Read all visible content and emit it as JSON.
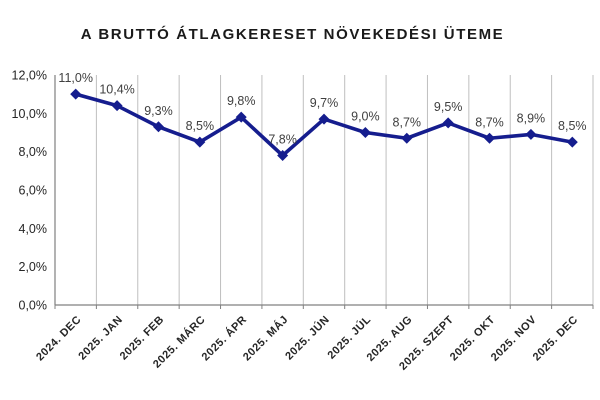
{
  "chart_data": {
    "type": "line",
    "title": "A BRUTTÓ ÁTLAGKERESET NÖVEKEDÉSI ÜTEME",
    "categories": [
      "2024. DEC",
      "2025. JAN",
      "2025. FEB",
      "2025. MÁRC",
      "2025. ÁPR",
      "2025. MÁJ",
      "2025. JÚN",
      "2025. JÚL",
      "2025. AUG",
      "2025. SZEPT",
      "2025. OKT",
      "2025. NOV",
      "2025. DEC"
    ],
    "values": [
      11.0,
      10.4,
      9.3,
      8.5,
      9.8,
      7.8,
      9.7,
      9.0,
      8.7,
      9.5,
      8.7,
      8.9,
      8.5
    ],
    "value_labels": [
      "11,0%",
      "10,4%",
      "9,3%",
      "8,5%",
      "9,8%",
      "7,8%",
      "9,7%",
      "9,0%",
      "8,7%",
      "9,5%",
      "8,7%",
      "8,9%",
      "8,5%"
    ],
    "ylim": [
      0,
      12
    ],
    "ytick_step": 2,
    "ytick_labels": [
      "0,0%",
      "2,0%",
      "4,0%",
      "6,0%",
      "8,0%",
      "10,0%",
      "12,0%"
    ],
    "xlabel": "",
    "ylabel": "",
    "grid": "vertical",
    "legend": "none",
    "colors": {
      "line": "#151d8e",
      "marker": "#151d8e",
      "gridline": "#bfbfbf",
      "axis": "#808080",
      "data_label": "#404040",
      "tick_label": "#262626",
      "title": "#1a1a1a",
      "background": "#ffffff"
    }
  }
}
